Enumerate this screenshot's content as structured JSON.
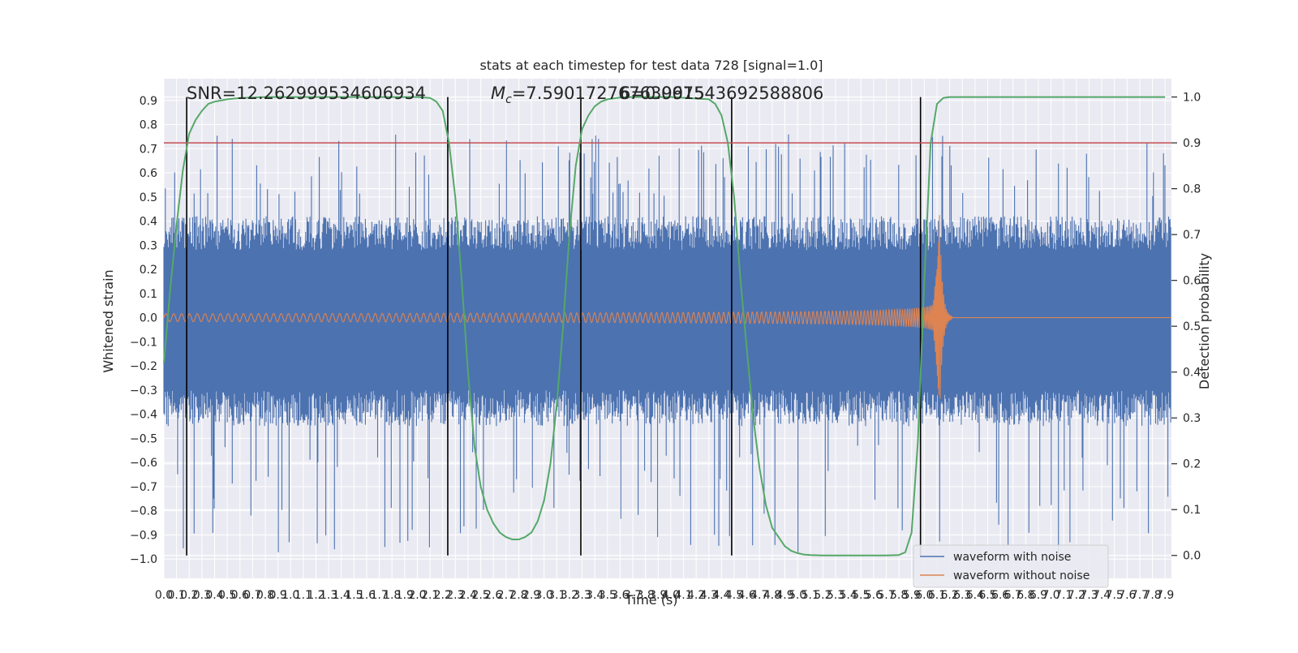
{
  "chart_data": {
    "type": "line",
    "title": "stats at each timestep for test data 728 [signal=1.0]",
    "xlabel": "Time (s)",
    "ylabel": "Whitened strain",
    "y2label": "Detection probability",
    "xlim": [
      0.0,
      7.95
    ],
    "ylim": [
      -1.08,
      0.99
    ],
    "y2lim": [
      -0.05,
      1.04
    ],
    "x_ticks": [
      "0.0",
      "0.1",
      "0.2",
      "0.3",
      "0.4",
      "0.5",
      "0.6",
      "0.7",
      "0.8",
      "0.9",
      "1.0",
      "1.1",
      "1.2",
      "1.3",
      "1.4",
      "1.5",
      "1.6",
      "1.7",
      "1.8",
      "1.9",
      "2.0",
      "2.1",
      "2.2",
      "2.3",
      "2.4",
      "2.5",
      "2.6",
      "2.7",
      "2.8",
      "2.9",
      "3.0",
      "3.1",
      "3.2",
      "3.3",
      "3.4",
      "3.5",
      "3.6",
      "3.7",
      "3.8",
      "3.9",
      "4.0",
      "4.1",
      "4.2",
      "4.3",
      "4.4",
      "4.5",
      "4.6",
      "4.7",
      "4.8",
      "4.9",
      "5.0",
      "5.1",
      "5.2",
      "5.3",
      "5.4",
      "5.5",
      "5.6",
      "5.7",
      "5.8",
      "5.9",
      "6.0",
      "6.1",
      "6.2",
      "6.3",
      "6.4",
      "6.5",
      "6.6",
      "6.7",
      "6.8",
      "6.9",
      "7.0",
      "7.1",
      "7.2",
      "7.3",
      "7.4",
      "7.5",
      "7.6",
      "7.7",
      "7.8",
      "7.9"
    ],
    "y_ticks": [
      "0.9",
      "0.8",
      "0.7",
      "0.6",
      "0.5",
      "0.4",
      "0.3",
      "0.2",
      "0.1",
      "0.0",
      "-0.1",
      "-0.2",
      "-0.3",
      "-0.4",
      "-0.5",
      "-0.6",
      "-0.7",
      "-0.8",
      "-0.9",
      "-1.0"
    ],
    "y2_ticks": [
      "1.0",
      "0.9",
      "0.8",
      "0.7",
      "0.6",
      "0.5",
      "0.4",
      "0.3",
      "0.2",
      "0.1",
      "0.0"
    ],
    "annotations": {
      "snr": "SNR=12.262999534606934",
      "mc_symbol": "M",
      "mc_sub": "c",
      "mc_value": "=7.590172767639915",
      "mc_overlap": "6=0.067543692588806"
    },
    "threshold": {
      "value": 0.9,
      "axis": "y2",
      "color": "#c44e52"
    },
    "vertical_lines": [
      0.18,
      2.24,
      3.29,
      4.48,
      5.97
    ],
    "series": [
      {
        "name": "waveform with noise",
        "color": "#4c72b0",
        "envelope": {
          "typical": 0.45,
          "max": 0.76,
          "min": -1.0
        }
      },
      {
        "name": "waveform without noise",
        "color": "#dd8452",
        "chirp": {
          "t_merger": 6.12,
          "amp_start": 0.02,
          "amp_peak": 0.43,
          "amp_trough": -0.27
        }
      },
      {
        "name": "detection probability",
        "color": "#55a868",
        "axis": "y2",
        "x": [
          0.0,
          0.05,
          0.1,
          0.15,
          0.2,
          0.25,
          0.3,
          0.35,
          0.4,
          0.5,
          0.6,
          0.7,
          0.8,
          1.0,
          1.5,
          2.0,
          2.1,
          2.15,
          2.2,
          2.25,
          2.3,
          2.35,
          2.4,
          2.45,
          2.5,
          2.55,
          2.6,
          2.65,
          2.7,
          2.75,
          2.8,
          2.85,
          2.9,
          2.95,
          3.0,
          3.05,
          3.1,
          3.15,
          3.2,
          3.25,
          3.3,
          3.35,
          3.4,
          3.45,
          3.5,
          3.6,
          3.7,
          4.0,
          4.3,
          4.35,
          4.4,
          4.45,
          4.5,
          4.55,
          4.6,
          4.65,
          4.7,
          4.75,
          4.8,
          4.85,
          4.9,
          4.95,
          5.0,
          5.05,
          5.1,
          5.2,
          5.3,
          5.5,
          5.7,
          5.8,
          5.85,
          5.9,
          5.95,
          6.0,
          6.05,
          6.1,
          6.15,
          6.2,
          6.3,
          6.5,
          7.0,
          7.5,
          7.9
        ],
        "y": [
          0.42,
          0.58,
          0.72,
          0.84,
          0.92,
          0.95,
          0.97,
          0.985,
          0.99,
          0.995,
          0.998,
          0.999,
          1.0,
          1.0,
          1.0,
          1.0,
          0.998,
          0.99,
          0.97,
          0.9,
          0.78,
          0.6,
          0.4,
          0.24,
          0.15,
          0.1,
          0.07,
          0.05,
          0.04,
          0.035,
          0.035,
          0.04,
          0.05,
          0.075,
          0.12,
          0.2,
          0.33,
          0.5,
          0.7,
          0.85,
          0.93,
          0.96,
          0.98,
          0.99,
          0.995,
          0.999,
          1.0,
          1.0,
          0.995,
          0.985,
          0.96,
          0.9,
          0.78,
          0.6,
          0.45,
          0.3,
          0.19,
          0.11,
          0.06,
          0.04,
          0.02,
          0.01,
          0.005,
          0.002,
          0.001,
          0.0,
          0.0,
          0.0,
          0.0,
          0.001,
          0.007,
          0.05,
          0.25,
          0.6,
          0.9,
          0.985,
          0.998,
          1.0,
          1.0,
          1.0,
          1.0,
          1.0,
          1.0
        ]
      }
    ],
    "legend": {
      "placement": "lower-right",
      "entries": [
        "waveform with noise",
        "waveform without noise"
      ]
    },
    "grid": true,
    "background": "#eaeaf2"
  }
}
